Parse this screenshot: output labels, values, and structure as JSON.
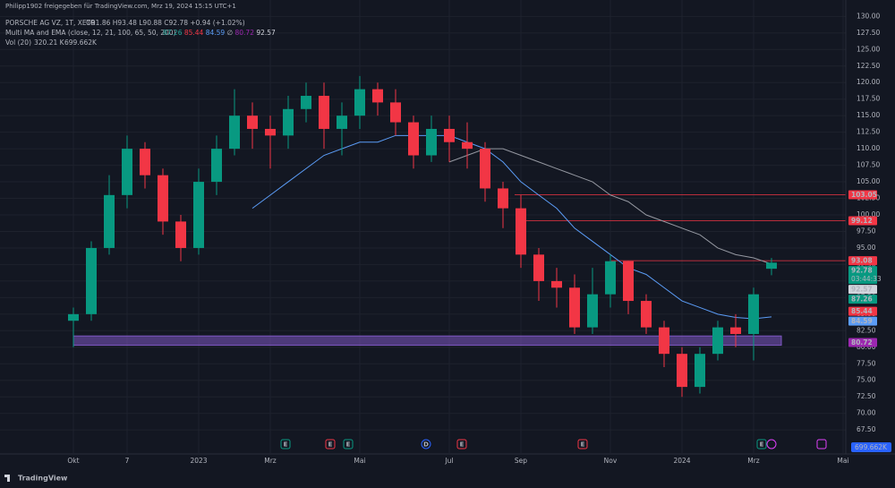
{
  "header": {
    "share": "Philipp1902 freigegeben für TradingView.com, Mrz 19, 2024 15:15 UTC+1",
    "symbol": "PORSCHE AG VZ, 1T, XETR",
    "ohlc": "O91.86 H93.48 L90.88 C92.78 +0.94 (+1.02%)",
    "indicator": "Multi MA and EMA (close, 12, 21, 100, 65, 50, 200)",
    "indicator_values": [
      {
        "text": "87.26",
        "color": "#26a69a"
      },
      {
        "text": "85.44",
        "color": "#f23645"
      },
      {
        "text": "84.59",
        "color": "#5b9cf6"
      },
      {
        "text": "∅",
        "color": "#b2b5be"
      },
      {
        "text": "80.72",
        "color": "#9c27b0"
      },
      {
        "text": "92.57",
        "color": "#d1d4dc"
      }
    ],
    "volume_label": "Vol (20)",
    "volume_values": [
      "320.21 K",
      "699.662K"
    ]
  },
  "events": [
    "E",
    "E",
    "E",
    "D",
    "E",
    "E",
    "E"
  ],
  "brand": "TradingView",
  "chart_data": {
    "type": "candlestick",
    "categories": [
      "Okt",
      null,
      null,
      "7",
      null,
      null,
      null,
      "2023",
      null,
      null,
      null,
      "Mrz",
      null,
      null,
      null,
      null,
      "Mai",
      null,
      null,
      null,
      null,
      "Jul",
      null,
      null,
      null,
      "Sep",
      null,
      null,
      null,
      null,
      "Nov",
      null,
      null,
      null,
      "2024",
      null,
      null,
      null,
      "Mrz",
      null,
      null,
      null,
      null,
      "Mai"
    ],
    "open": [
      84,
      85,
      95,
      103,
      110,
      106,
      99,
      95,
      105,
      110,
      115,
      113,
      112,
      116,
      118,
      113,
      115,
      119,
      117,
      114,
      109,
      113,
      111,
      110,
      104,
      101,
      94,
      90,
      89,
      83,
      88,
      93,
      87,
      83,
      79,
      74,
      79,
      83,
      82,
      91.86,
      null,
      null,
      null,
      null
    ],
    "high": [
      86,
      96,
      106,
      112,
      111,
      107,
      100,
      107,
      112,
      119,
      117,
      115,
      118,
      120,
      120,
      117,
      121,
      120,
      119,
      115,
      115,
      115,
      114,
      111,
      105,
      103,
      95,
      92,
      91,
      92,
      94,
      93,
      88,
      84,
      80,
      80,
      84,
      85,
      89,
      93.48,
      null,
      null,
      null,
      null
    ],
    "low": [
      80,
      84,
      94,
      101,
      104,
      97,
      93,
      94,
      103,
      109,
      110,
      107,
      110,
      114,
      110,
      109,
      113,
      115,
      112,
      107,
      108,
      108,
      107,
      102,
      98,
      92,
      87,
      86,
      82,
      82,
      86,
      85,
      82,
      77,
      72.5,
      73,
      78,
      80,
      78,
      90.88,
      null,
      null,
      null,
      null
    ],
    "close": [
      85,
      95,
      103,
      110,
      106,
      99,
      95,
      105,
      110,
      115,
      113,
      112,
      116,
      118,
      113,
      115,
      119,
      117,
      114,
      109,
      113,
      111,
      110,
      104,
      101,
      94,
      90,
      89,
      83,
      88,
      93,
      87,
      83,
      79,
      74,
      79,
      83,
      82,
      88,
      92.78,
      null,
      null,
      null,
      null
    ],
    "up_color": "#089981",
    "down_color": "#f23645",
    "moving_averages": [
      {
        "color": "#9598a1",
        "values": [
          null,
          null,
          null,
          null,
          null,
          null,
          null,
          null,
          null,
          null,
          null,
          null,
          null,
          null,
          null,
          null,
          null,
          null,
          null,
          null,
          null,
          108,
          109,
          110,
          110,
          109,
          108,
          107,
          106,
          105,
          103,
          102,
          100,
          99,
          98,
          97,
          95,
          94,
          93.5,
          92.57,
          null,
          null,
          null,
          null
        ]
      },
      {
        "color": "#5b9cf6",
        "values": [
          null,
          null,
          null,
          null,
          null,
          null,
          null,
          null,
          null,
          null,
          101,
          103,
          105,
          107,
          109,
          110,
          111,
          111,
          112,
          112,
          112,
          112,
          111,
          110,
          108,
          105,
          103,
          101,
          98,
          96,
          94,
          92,
          91,
          89,
          87,
          86,
          85,
          84.5,
          84.3,
          84.59,
          null,
          null,
          null,
          null
        ]
      }
    ],
    "levels": [
      {
        "value": 103.05,
        "color": "#f23645"
      },
      {
        "value": 99.12,
        "color": "#f23645"
      },
      {
        "value": 93.08,
        "color": "#f23645"
      }
    ],
    "zone": [
      80.3,
      81.7
    ],
    "zone_color": "#7e57c2",
    "price_tags": [
      {
        "value": 103.05,
        "color": "#f23645"
      },
      {
        "value": 99.12,
        "color": "#f23645"
      },
      {
        "value": 93.08,
        "color": "#f23645"
      },
      {
        "value": 92.78,
        "color": "#089981",
        "countdown": "03:44:33"
      },
      {
        "value": 92.57,
        "color": "#d1d4dc"
      },
      {
        "value": 87.26,
        "color": "#089981"
      },
      {
        "value": 85.44,
        "color": "#f23645"
      },
      {
        "value": 84.59,
        "color": "#5b9cf6"
      },
      {
        "value": 80.72,
        "color": "#9c27b0"
      }
    ],
    "ylim": [
      64,
      131.4
    ],
    "yticks": [
      {
        "value": 67.5,
        "label": "67.50"
      },
      {
        "value": 70,
        "label": "70.00"
      },
      {
        "value": 72.5,
        "label": "72.50"
      },
      {
        "value": 75,
        "label": "75.00"
      },
      {
        "value": 77.5,
        "label": "77.50"
      },
      {
        "value": 80,
        "label": "80.00"
      },
      {
        "value": 82.5,
        "label": "82.50"
      },
      {
        "value": 85,
        "label": "85.00"
      },
      {
        "value": 87.5,
        "label": "87.50"
      },
      {
        "value": 90,
        "label": "90.00"
      },
      {
        "value": 92.5,
        "label": "92.50"
      },
      {
        "value": 95,
        "label": "95.00"
      },
      {
        "value": 97.5,
        "label": "97.50"
      },
      {
        "value": 100,
        "label": "100.00"
      },
      {
        "value": 102.5,
        "label": "102.50"
      },
      {
        "value": 105,
        "label": "105.00"
      },
      {
        "value": 107.5,
        "label": "107.50"
      },
      {
        "value": 110,
        "label": "110.00"
      },
      {
        "value": 112.5,
        "label": "112.50"
      },
      {
        "value": 115,
        "label": "115.00"
      },
      {
        "value": 117.5,
        "label": "117.50"
      },
      {
        "value": 120,
        "label": "120.00"
      },
      {
        "value": 122.5,
        "label": "122.50"
      },
      {
        "value": 125,
        "label": "125.00"
      },
      {
        "value": 127.5,
        "label": "127.50"
      },
      {
        "value": 130,
        "label": "130.00"
      }
    ],
    "grid": true
  }
}
